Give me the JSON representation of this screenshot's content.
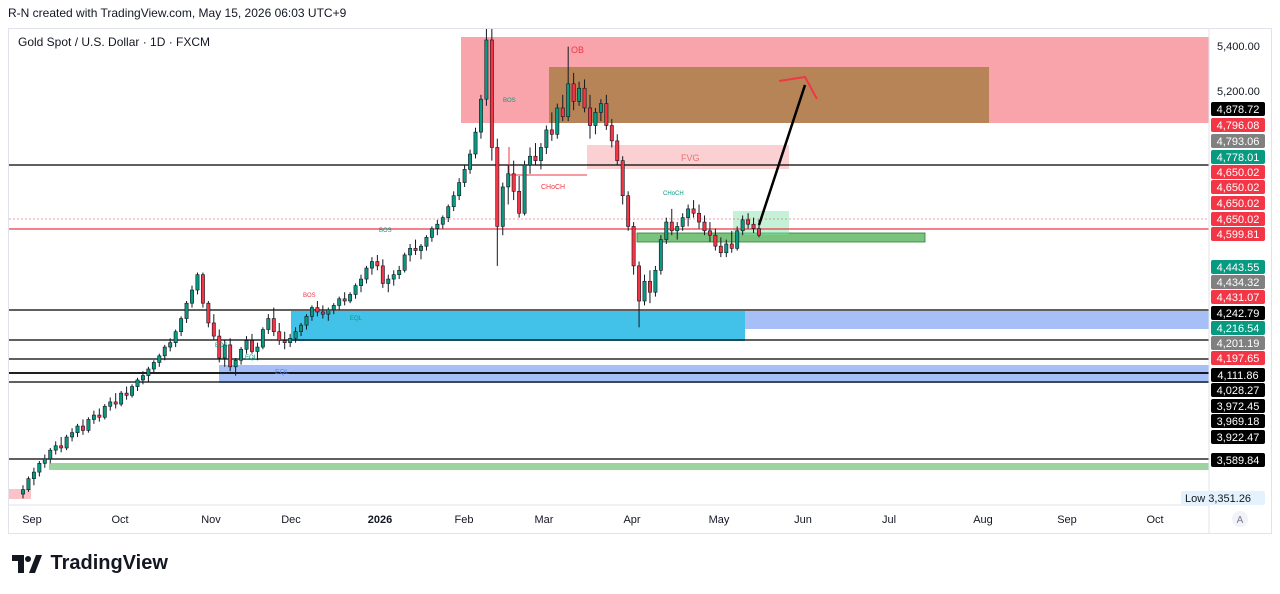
{
  "header": {
    "attribution": "R-N created with TradingView.com, May 15, 2026 06:03 UTC+9"
  },
  "symbol": {
    "title": "Gold Spot / U.S. Dollar · 1D · FXCM"
  },
  "footer": {
    "brand": "TradingView"
  },
  "icons": {
    "logo": "tradingview-logo-icon",
    "auto_scale": "auto-scale-button"
  },
  "colors": {
    "up": "#089981",
    "down": "#f23645",
    "ob_red": "#f23645",
    "ob_brown": "#a07a3c",
    "fvg_pink": "#f7a9ad",
    "bull_green": "#4caf50",
    "demand_cyan": "#22b7e5",
    "demand_blue": "#5c8bf0",
    "resistance_red": "#f23645",
    "black": "#000000"
  },
  "chart_data": {
    "type": "candlestick",
    "title": "Gold Spot / U.S. Dollar · 1D · FXCM",
    "x_ticks": [
      "Sep",
      "Oct",
      "Nov",
      "Dec",
      "2026",
      "Feb",
      "Mar",
      "Apr",
      "May",
      "Jun",
      "Jul",
      "Aug",
      "Sep",
      "Oct"
    ],
    "y_range": [
      3330,
      5500
    ],
    "y_ticks": [
      "5,400.00",
      "5,200.00"
    ],
    "price_labels": [
      {
        "text": "4,878.72",
        "color": "#000000"
      },
      {
        "text": "4,796.08",
        "color": "#f23645"
      },
      {
        "text": "4,793.06",
        "color": "#808080"
      },
      {
        "text": "4,778.01",
        "color": "#089981"
      },
      {
        "text": "4,650.02",
        "color": "#f23645"
      },
      {
        "text": "4,650.02",
        "color": "#f23645"
      },
      {
        "text": "4,650.02",
        "color": "#f23645"
      },
      {
        "text": "4,650.02",
        "color": "#f23645"
      },
      {
        "text": "4,599.81",
        "color": "#f23645"
      },
      {
        "text": "4,443.55",
        "color": "#089981"
      },
      {
        "text": "4,434.32",
        "color": "#808080"
      },
      {
        "text": "4,431.07",
        "color": "#f23645"
      },
      {
        "text": "4,242.79",
        "color": "#000000"
      },
      {
        "text": "4,216.54",
        "color": "#089981"
      },
      {
        "text": "4,201.19",
        "color": "#808080"
      },
      {
        "text": "4,197.65",
        "color": "#f23645"
      },
      {
        "text": "4,111.86",
        "color": "#000000"
      },
      {
        "text": "4,028.27",
        "color": "#000000"
      },
      {
        "text": "3,972.45",
        "color": "#000000"
      },
      {
        "text": "3,969.18",
        "color": "#000000"
      },
      {
        "text": "3,922.47",
        "color": "#000000"
      },
      {
        "text": "3,589.84",
        "color": "#000000"
      }
    ],
    "low": {
      "label": "Low",
      "value": "3,351.26"
    },
    "auto_label": "A",
    "annotations": [
      "OB",
      "FVG",
      "BOS",
      "BOS",
      "BOS",
      "BOS",
      "CHoCH",
      "EQL",
      "EQL",
      "EQL",
      "CHoCH"
    ],
    "candles": [
      [
        3380,
        3420,
        3360,
        3400
      ],
      [
        3400,
        3460,
        3390,
        3450
      ],
      [
        3450,
        3500,
        3420,
        3480
      ],
      [
        3480,
        3530,
        3460,
        3520
      ],
      [
        3520,
        3560,
        3500,
        3540
      ],
      [
        3540,
        3590,
        3520,
        3580
      ],
      [
        3580,
        3620,
        3560,
        3600
      ],
      [
        3600,
        3640,
        3570,
        3590
      ],
      [
        3590,
        3650,
        3580,
        3640
      ],
      [
        3640,
        3680,
        3620,
        3660
      ],
      [
        3660,
        3700,
        3640,
        3690
      ],
      [
        3690,
        3720,
        3650,
        3670
      ],
      [
        3670,
        3730,
        3660,
        3720
      ],
      [
        3720,
        3760,
        3700,
        3740
      ],
      [
        3740,
        3770,
        3710,
        3730
      ],
      [
        3730,
        3790,
        3720,
        3780
      ],
      [
        3780,
        3820,
        3760,
        3800
      ],
      [
        3800,
        3840,
        3770,
        3790
      ],
      [
        3790,
        3850,
        3780,
        3840
      ],
      [
        3840,
        3870,
        3810,
        3830
      ],
      [
        3830,
        3880,
        3820,
        3870
      ],
      [
        3870,
        3910,
        3850,
        3900
      ],
      [
        3900,
        3940,
        3880,
        3920
      ],
      [
        3920,
        3960,
        3890,
        3950
      ],
      [
        3950,
        3990,
        3930,
        3980
      ],
      [
        3980,
        4020,
        3960,
        4010
      ],
      [
        4010,
        4060,
        3990,
        4050
      ],
      [
        4050,
        4090,
        4030,
        4070
      ],
      [
        4070,
        4130,
        4050,
        4120
      ],
      [
        4120,
        4190,
        4100,
        4180
      ],
      [
        4180,
        4260,
        4160,
        4250
      ],
      [
        4250,
        4330,
        4230,
        4310
      ],
      [
        4310,
        4390,
        4290,
        4380
      ],
      [
        4380,
        4390,
        4230,
        4250
      ],
      [
        4250,
        4260,
        4140,
        4160
      ],
      [
        4160,
        4200,
        4080,
        4100
      ],
      [
        4100,
        4130,
        3980,
        4000
      ],
      [
        4000,
        4080,
        3960,
        4060
      ],
      [
        4060,
        4090,
        3940,
        3960
      ],
      [
        3960,
        4000,
        3920,
        3990
      ],
      [
        3990,
        4050,
        3970,
        4040
      ],
      [
        4040,
        4100,
        4020,
        4080
      ],
      [
        4080,
        4110,
        4020,
        4030
      ],
      [
        4030,
        4070,
        3990,
        4050
      ],
      [
        4050,
        4140,
        4040,
        4130
      ],
      [
        4130,
        4200,
        4110,
        4180
      ],
      [
        4180,
        4230,
        4100,
        4120
      ],
      [
        4120,
        4160,
        4060,
        4080
      ],
      [
        4080,
        4120,
        4040,
        4070
      ],
      [
        4070,
        4110,
        4050,
        4090
      ],
      [
        4090,
        4140,
        4070,
        4120
      ],
      [
        4120,
        4160,
        4100,
        4150
      ],
      [
        4150,
        4200,
        4130,
        4190
      ],
      [
        4190,
        4240,
        4170,
        4230
      ],
      [
        4230,
        4260,
        4190,
        4210
      ],
      [
        4210,
        4240,
        4180,
        4200
      ],
      [
        4200,
        4230,
        4170,
        4220
      ],
      [
        4220,
        4250,
        4200,
        4240
      ],
      [
        4240,
        4280,
        4220,
        4270
      ],
      [
        4270,
        4300,
        4240,
        4260
      ],
      [
        4260,
        4300,
        4250,
        4290
      ],
      [
        4290,
        4340,
        4270,
        4330
      ],
      [
        4330,
        4380,
        4300,
        4360
      ],
      [
        4360,
        4420,
        4340,
        4410
      ],
      [
        4410,
        4460,
        4380,
        4440
      ],
      [
        4440,
        4470,
        4400,
        4420
      ],
      [
        4420,
        4450,
        4320,
        4340
      ],
      [
        4340,
        4380,
        4300,
        4360
      ],
      [
        4360,
        4400,
        4330,
        4380
      ],
      [
        4380,
        4420,
        4360,
        4400
      ],
      [
        4400,
        4480,
        4390,
        4470
      ],
      [
        4470,
        4520,
        4440,
        4500
      ],
      [
        4500,
        4540,
        4470,
        4490
      ],
      [
        4490,
        4520,
        4450,
        4510
      ],
      [
        4510,
        4560,
        4490,
        4550
      ],
      [
        4550,
        4600,
        4530,
        4590
      ],
      [
        4590,
        4630,
        4560,
        4610
      ],
      [
        4610,
        4650,
        4590,
        4640
      ],
      [
        4640,
        4700,
        4620,
        4690
      ],
      [
        4690,
        4760,
        4670,
        4740
      ],
      [
        4740,
        4820,
        4720,
        4800
      ],
      [
        4800,
        4880,
        4780,
        4860
      ],
      [
        4860,
        4950,
        4840,
        4930
      ],
      [
        4930,
        5050,
        4910,
        5030
      ],
      [
        5030,
        5200,
        5000,
        5180
      ],
      [
        5180,
        5500,
        5150,
        5450
      ],
      [
        5450,
        5520,
        4900,
        4960
      ],
      [
        4960,
        5000,
        4420,
        4600
      ],
      [
        4600,
        4800,
        4560,
        4780
      ],
      [
        4780,
        4880,
        4700,
        4840
      ],
      [
        4840,
        4900,
        4720,
        4760
      ],
      [
        4760,
        4830,
        4640,
        4660
      ],
      [
        4660,
        4900,
        4650,
        4880
      ],
      [
        4880,
        4960,
        4840,
        4920
      ],
      [
        4920,
        4980,
        4880,
        4900
      ],
      [
        4900,
        4980,
        4860,
        4960
      ],
      [
        4960,
        5060,
        4930,
        5040
      ],
      [
        5040,
        5120,
        4990,
        5020
      ],
      [
        5020,
        5160,
        5000,
        5140
      ],
      [
        5140,
        5200,
        5080,
        5100
      ],
      [
        5100,
        5420,
        5080,
        5250
      ],
      [
        5250,
        5300,
        5130,
        5170
      ],
      [
        5170,
        5260,
        5150,
        5230
      ],
      [
        5230,
        5270,
        5120,
        5140
      ],
      [
        5140,
        5200,
        5000,
        5060
      ],
      [
        5060,
        5140,
        5020,
        5120
      ],
      [
        5120,
        5180,
        5080,
        5160
      ],
      [
        5160,
        5200,
        5040,
        5060
      ],
      [
        5060,
        5090,
        4960,
        4990
      ],
      [
        4990,
        5020,
        4880,
        4900
      ],
      [
        4900,
        4920,
        4700,
        4740
      ],
      [
        4740,
        4760,
        4580,
        4600
      ],
      [
        4600,
        4620,
        4380,
        4420
      ],
      [
        4420,
        4440,
        4140,
        4260
      ],
      [
        4260,
        4380,
        4240,
        4350
      ],
      [
        4350,
        4400,
        4250,
        4300
      ],
      [
        4300,
        4420,
        4280,
        4400
      ],
      [
        4400,
        4560,
        4380,
        4540
      ],
      [
        4540,
        4640,
        4520,
        4620
      ],
      [
        4620,
        4680,
        4560,
        4580
      ],
      [
        4580,
        4620,
        4540,
        4600
      ],
      [
        4600,
        4660,
        4580,
        4640
      ],
      [
        4640,
        4700,
        4600,
        4680
      ],
      [
        4680,
        4720,
        4640,
        4660
      ],
      [
        4660,
        4700,
        4590,
        4620
      ],
      [
        4620,
        4650,
        4560,
        4580
      ],
      [
        4580,
        4620,
        4530,
        4560
      ],
      [
        4560,
        4590,
        4490,
        4510
      ],
      [
        4510,
        4550,
        4460,
        4480
      ],
      [
        4480,
        4540,
        4460,
        4520
      ],
      [
        4520,
        4580,
        4480,
        4500
      ],
      [
        4500,
        4600,
        4490,
        4580
      ],
      [
        4580,
        4650,
        4560,
        4630
      ],
      [
        4630,
        4660,
        4590,
        4610
      ],
      [
        4610,
        4640,
        4570,
        4590
      ],
      [
        4590,
        4630,
        4550,
        4560
      ]
    ]
  }
}
